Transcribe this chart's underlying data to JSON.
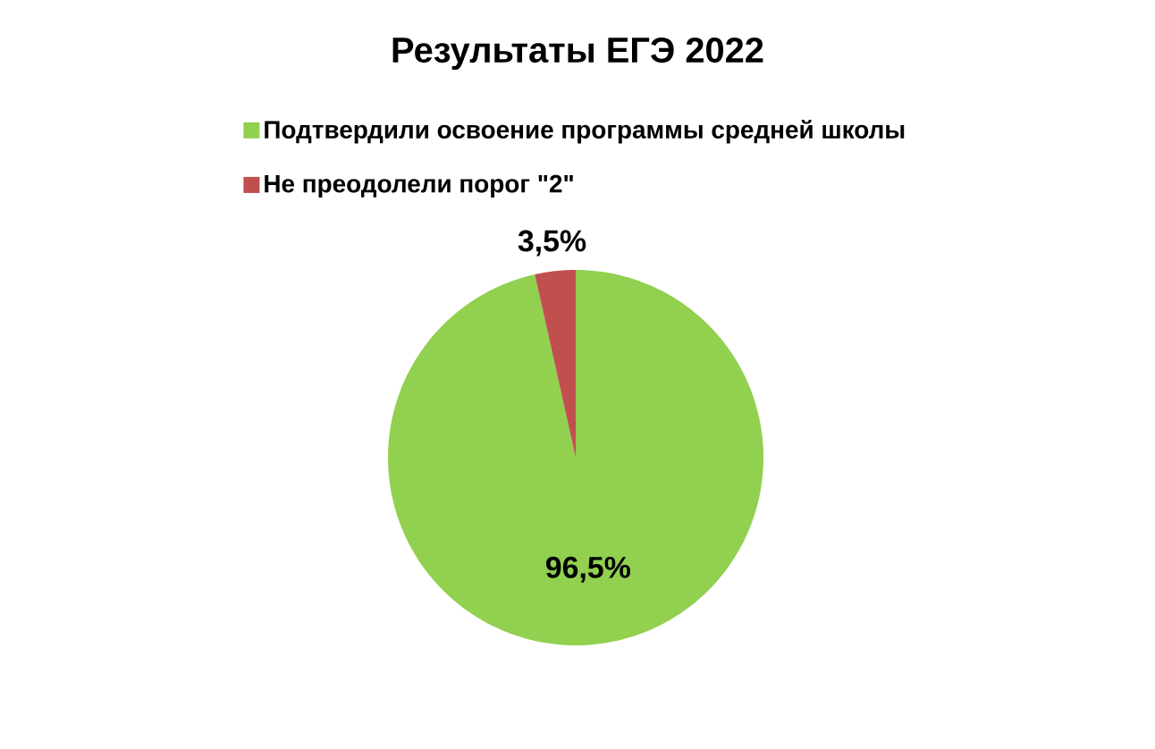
{
  "chart_data": {
    "type": "pie",
    "title": "Результаты ЕГЭ 2022",
    "categories": [
      "Подтвердили освоение программы средней школы",
      "Не преодолели порог \"2\""
    ],
    "values": [
      96.5,
      3.5
    ],
    "colors": [
      "#92d050",
      "#c0504d"
    ],
    "value_labels": [
      "96,5%",
      "3,5%"
    ],
    "legend": "top"
  }
}
